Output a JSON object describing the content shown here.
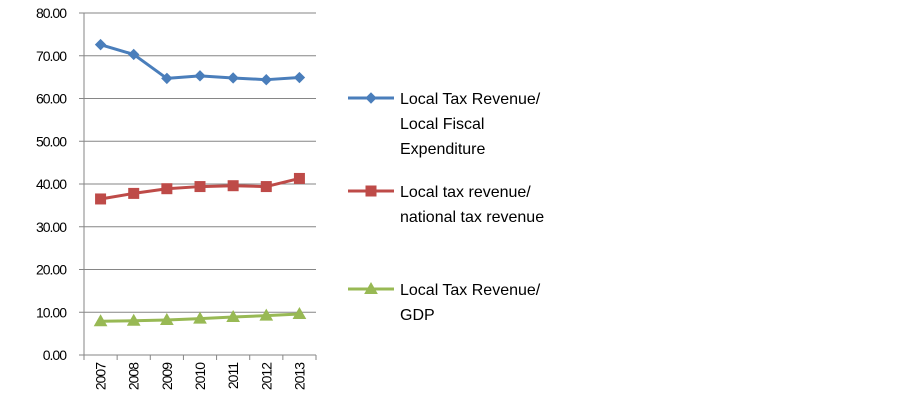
{
  "chart_data": {
    "type": "line",
    "title": "",
    "xlabel": "",
    "ylabel": "",
    "categories": [
      "2007",
      "2008",
      "2009",
      "2010",
      "2011",
      "2012",
      "2013"
    ],
    "ylim": [
      0,
      80
    ],
    "yticks": [
      "0.00",
      "10.00",
      "20.00",
      "30.00",
      "40.00",
      "50.00",
      "60.00",
      "70.00",
      "80.00"
    ],
    "grid": "horizontal",
    "legend_position": "right",
    "series": [
      {
        "name": "Local Tax Revenue/ Local Fiscal Expenditure",
        "legend_lines": [
          "Local Tax Revenue/",
          "Local Fiscal",
          "Expenditure"
        ],
        "values": [
          72.6,
          70.3,
          64.7,
          65.3,
          64.8,
          64.4,
          64.9
        ],
        "color": "#4a7ebb",
        "marker": "diamond"
      },
      {
        "name": "Local tax revenue/ national tax revenue",
        "legend_lines": [
          "Local tax revenue/",
          "national tax revenue"
        ],
        "values": [
          36.5,
          37.8,
          38.9,
          39.4,
          39.6,
          39.4,
          41.3
        ],
        "color": "#be4b48",
        "marker": "square"
      },
      {
        "name": "Local Tax Revenue/ GDP",
        "legend_lines": [
          "Local Tax Revenue/",
          "GDP"
        ],
        "values": [
          7.9,
          8.0,
          8.2,
          8.5,
          8.9,
          9.2,
          9.6
        ],
        "color": "#98b954",
        "marker": "triangle"
      }
    ]
  }
}
